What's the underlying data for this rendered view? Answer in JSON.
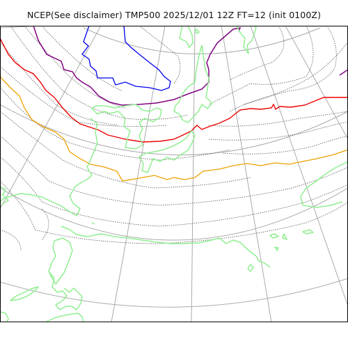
{
  "title": "NCEP(See disclaimer) TMP500 2025/12/01 12Z FT=12 (init 0100Z)",
  "map": {
    "colors": {
      "graticule": "#aaaaaa",
      "coast": "#90ee90",
      "dotted_isotherm": "#555555",
      "isotherm_blue": "#0000ee",
      "isotherm_purple": "#800080",
      "isotherm_red": "#ee0000",
      "isotherm_orange": "#eea000",
      "frame": "#000000"
    }
  }
}
